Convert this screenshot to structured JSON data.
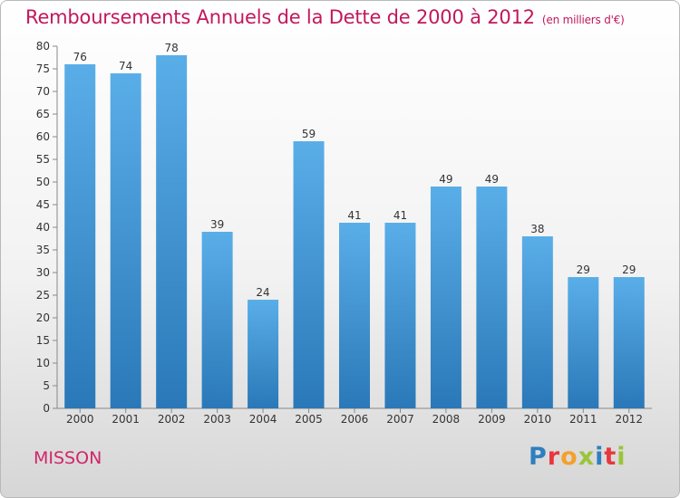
{
  "title": "Remboursements Annuels de la Dette de 2000 à 2012",
  "subtitle": "(en milliers d'€)",
  "place": "MISSON",
  "logo": {
    "text": "Proxiti",
    "colors": [
      "#2e7fbf",
      "#e8383d",
      "#f4a12b",
      "#9bc43a",
      "#2e7fbf",
      "#e8383d",
      "#9bc43a"
    ]
  },
  "colors": {
    "bar_top": "#5aaee8",
    "bar_bottom": "#2a78b8",
    "title": "#c2185b"
  },
  "chart_data": {
    "type": "bar",
    "categories": [
      "2000",
      "2001",
      "2002",
      "2003",
      "2004",
      "2005",
      "2006",
      "2007",
      "2008",
      "2009",
      "2010",
      "2011",
      "2012"
    ],
    "values": [
      76,
      74,
      78,
      39,
      24,
      59,
      41,
      41,
      49,
      49,
      38,
      29,
      29
    ],
    "ylim": [
      0,
      80
    ],
    "yticks": [
      0,
      5,
      10,
      15,
      20,
      25,
      30,
      35,
      40,
      45,
      50,
      55,
      60,
      65,
      70,
      75,
      80
    ],
    "grid": false,
    "legend": "none"
  }
}
